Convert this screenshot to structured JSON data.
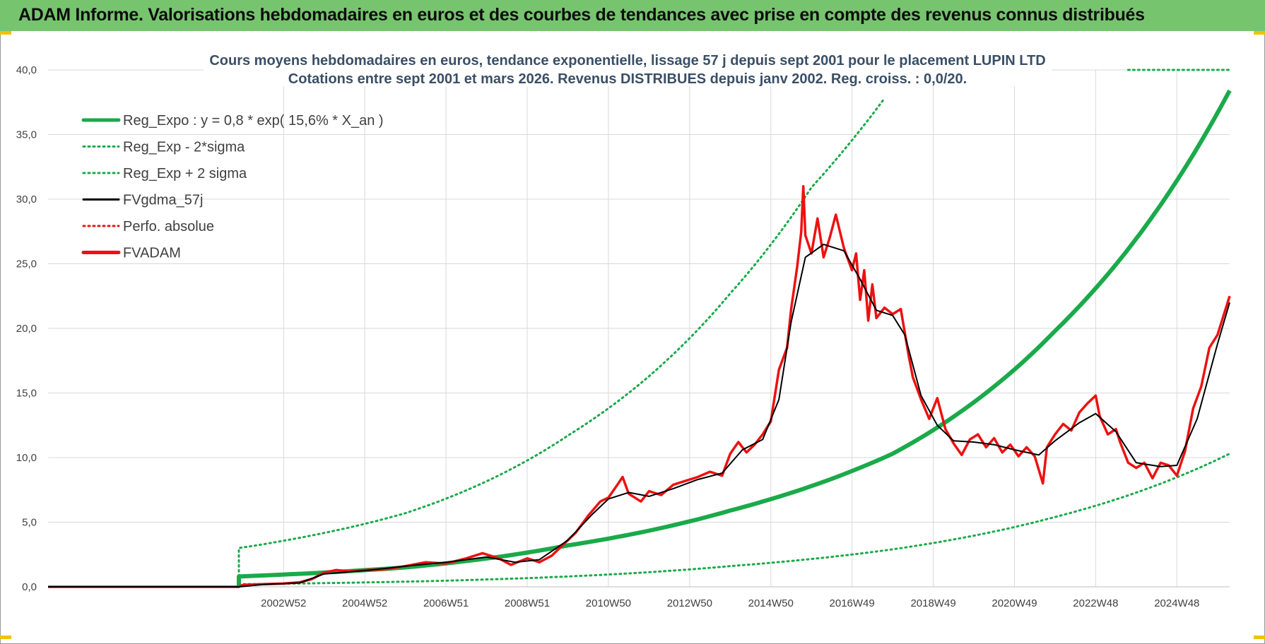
{
  "header": {
    "title": "ADAM Informe. Valorisations hebdomadaires en euros et des courbes de tendances avec prise en compte des revenus connus distribués"
  },
  "colors": {
    "banner": "#77c46f",
    "reg_expo": "#1aaa4a",
    "fv_line": "#000000",
    "fvadam": "#ee1111",
    "grid": "#d9d9d9",
    "corner_marks": "#f2c100"
  },
  "chart_data": {
    "type": "line",
    "title_line1": "Cours moyens hebdomadaires en euros, tendance exponentielle, lissage 57 j depuis sept 2001 pour le placement LUPIN LTD",
    "title_line2": "Cotations entre sept 2001 et mars 2026. Revenus DISTRIBUES depuis janv 2002. Reg. croiss. : 0,0/20.",
    "ylim": [
      0,
      40
    ],
    "y_ticks": [
      "0,0",
      "5,0",
      "10,0",
      "15,0",
      "20,0",
      "25,0",
      "30,0",
      "35,0",
      "40,0"
    ],
    "x_range_years": [
      1997.2,
      2026.3
    ],
    "x_tick_labels": [
      "2002W52",
      "2004W52",
      "2006W51",
      "2008W51",
      "2010W50",
      "2012W50",
      "2014W50",
      "2016W49",
      "2018W49",
      "2020W49",
      "2022W48",
      "2024W48"
    ],
    "x_tick_years": [
      2003.0,
      2005.0,
      2007.0,
      2009.0,
      2011.0,
      2013.0,
      2015.0,
      2017.0,
      2019.0,
      2021.0,
      2023.0,
      2025.0
    ],
    "grid": true,
    "legend_position": "top-left",
    "legend": [
      {
        "label": "Reg_Expo : y = 0,8 * exp( 15,6% *  X_an )",
        "style": "solid-thick",
        "color": "#1aaa4a"
      },
      {
        "label": "Reg_Exp - 2*sigma",
        "style": "dotted",
        "color": "#1aaa4a"
      },
      {
        "label": "Reg_Exp + 2 sigma",
        "style": "dotted",
        "color": "#1aaa4a"
      },
      {
        "label": "FVgdma_57j",
        "style": "solid",
        "color": "#000000"
      },
      {
        "label": "Perfo. absolue",
        "style": "dotted",
        "color": "#ee1111"
      },
      {
        "label": "FVADAM",
        "style": "solid-thick",
        "color": "#ee1111"
      }
    ],
    "regression": {
      "start_year": 2001.9,
      "end_year": 2026.3,
      "reg_expo": [
        [
          2001.9,
          0.8
        ],
        [
          2006.0,
          1.5
        ],
        [
          2010.0,
          3.2
        ],
        [
          2014.0,
          5.9
        ],
        [
          2018.0,
          10.3
        ],
        [
          2022.0,
          19.8
        ],
        [
          2026.3,
          38.4
        ]
      ],
      "lower_2sigma": [
        [
          2001.9,
          0.2
        ],
        [
          2006.0,
          0.4
        ],
        [
          2010.0,
          0.8
        ],
        [
          2014.0,
          1.6
        ],
        [
          2018.0,
          2.9
        ],
        [
          2022.0,
          5.4
        ],
        [
          2026.3,
          10.3
        ]
      ],
      "upper_2sigma": [
        [
          2001.9,
          3.0
        ],
        [
          2006.0,
          5.7
        ],
        [
          2010.0,
          11.7
        ],
        [
          2014.0,
          22.7
        ],
        [
          2016.0,
          30.9
        ],
        [
          2017.8,
          37.8
        ]
      ],
      "upper_cap": [
        [
          2023.8,
          40.0
        ],
        [
          2026.3,
          40.0
        ]
      ]
    },
    "series": [
      {
        "name": "FVADAM",
        "points": [
          [
            1997.2,
            0.0
          ],
          [
            2001.9,
            0.0
          ],
          [
            2002.0,
            0.15
          ],
          [
            2002.5,
            0.2
          ],
          [
            2003.0,
            0.25
          ],
          [
            2003.4,
            0.35
          ],
          [
            2003.7,
            0.6
          ],
          [
            2004.0,
            1.1
          ],
          [
            2004.3,
            1.3
          ],
          [
            2004.6,
            1.2
          ],
          [
            2005.0,
            1.3
          ],
          [
            2005.5,
            1.35
          ],
          [
            2006.0,
            1.6
          ],
          [
            2006.5,
            1.9
          ],
          [
            2007.0,
            1.8
          ],
          [
            2007.5,
            2.2
          ],
          [
            2007.9,
            2.6
          ],
          [
            2008.3,
            2.2
          ],
          [
            2008.6,
            1.7
          ],
          [
            2009.0,
            2.2
          ],
          [
            2009.3,
            1.9
          ],
          [
            2009.6,
            2.4
          ],
          [
            2009.9,
            3.3
          ],
          [
            2010.2,
            4.2
          ],
          [
            2010.5,
            5.5
          ],
          [
            2010.8,
            6.6
          ],
          [
            2011.0,
            6.9
          ],
          [
            2011.2,
            7.8
          ],
          [
            2011.35,
            8.5
          ],
          [
            2011.5,
            7.2
          ],
          [
            2011.8,
            6.6
          ],
          [
            2012.0,
            7.4
          ],
          [
            2012.3,
            7.1
          ],
          [
            2012.6,
            7.9
          ],
          [
            2012.9,
            8.2
          ],
          [
            2013.2,
            8.5
          ],
          [
            2013.5,
            8.9
          ],
          [
            2013.8,
            8.6
          ],
          [
            2014.0,
            10.3
          ],
          [
            2014.2,
            11.2
          ],
          [
            2014.4,
            10.4
          ],
          [
            2014.6,
            11.0
          ],
          [
            2014.8,
            11.8
          ],
          [
            2015.0,
            12.8
          ],
          [
            2015.2,
            16.8
          ],
          [
            2015.4,
            18.5
          ],
          [
            2015.5,
            21.5
          ],
          [
            2015.65,
            24.8
          ],
          [
            2015.75,
            27.5
          ],
          [
            2015.8,
            31.0
          ],
          [
            2015.85,
            27.2
          ],
          [
            2016.0,
            25.8
          ],
          [
            2016.15,
            28.5
          ],
          [
            2016.3,
            25.5
          ],
          [
            2016.45,
            27.0
          ],
          [
            2016.6,
            28.8
          ],
          [
            2016.8,
            26.2
          ],
          [
            2017.0,
            24.5
          ],
          [
            2017.1,
            25.8
          ],
          [
            2017.2,
            22.2
          ],
          [
            2017.3,
            24.5
          ],
          [
            2017.4,
            20.6
          ],
          [
            2017.5,
            23.4
          ],
          [
            2017.6,
            20.8
          ],
          [
            2017.8,
            21.6
          ],
          [
            2018.0,
            21.1
          ],
          [
            2018.2,
            21.5
          ],
          [
            2018.4,
            17.8
          ],
          [
            2018.5,
            16.2
          ],
          [
            2018.7,
            14.5
          ],
          [
            2018.9,
            13.0
          ],
          [
            2019.1,
            14.6
          ],
          [
            2019.3,
            12.2
          ],
          [
            2019.5,
            11.1
          ],
          [
            2019.7,
            10.2
          ],
          [
            2019.9,
            11.4
          ],
          [
            2020.1,
            11.8
          ],
          [
            2020.3,
            10.8
          ],
          [
            2020.5,
            11.5
          ],
          [
            2020.7,
            10.4
          ],
          [
            2020.9,
            11.0
          ],
          [
            2021.1,
            10.1
          ],
          [
            2021.3,
            10.8
          ],
          [
            2021.5,
            10.1
          ],
          [
            2021.7,
            8.0
          ],
          [
            2021.8,
            10.8
          ],
          [
            2022.0,
            11.8
          ],
          [
            2022.2,
            12.6
          ],
          [
            2022.4,
            12.1
          ],
          [
            2022.6,
            13.5
          ],
          [
            2022.8,
            14.2
          ],
          [
            2023.0,
            14.8
          ],
          [
            2023.1,
            13.2
          ],
          [
            2023.3,
            11.8
          ],
          [
            2023.5,
            12.2
          ],
          [
            2023.6,
            11.2
          ],
          [
            2023.8,
            9.6
          ],
          [
            2024.0,
            9.2
          ],
          [
            2024.2,
            9.6
          ],
          [
            2024.4,
            8.4
          ],
          [
            2024.6,
            9.6
          ],
          [
            2024.8,
            9.4
          ],
          [
            2025.0,
            8.6
          ],
          [
            2025.2,
            10.5
          ],
          [
            2025.4,
            13.8
          ],
          [
            2025.6,
            15.5
          ],
          [
            2025.8,
            18.5
          ],
          [
            2026.0,
            19.5
          ],
          [
            2026.3,
            22.5
          ]
        ]
      },
      {
        "name": "FVgdma_57j",
        "points": [
          [
            1997.2,
            0.0
          ],
          [
            2001.9,
            0.0
          ],
          [
            2002.5,
            0.18
          ],
          [
            2003.4,
            0.3
          ],
          [
            2004.0,
            1.0
          ],
          [
            2005.0,
            1.25
          ],
          [
            2006.0,
            1.6
          ],
          [
            2007.0,
            1.9
          ],
          [
            2008.0,
            2.3
          ],
          [
            2008.7,
            1.9
          ],
          [
            2009.3,
            2.1
          ],
          [
            2010.0,
            3.6
          ],
          [
            2010.6,
            5.6
          ],
          [
            2011.0,
            6.8
          ],
          [
            2011.5,
            7.3
          ],
          [
            2012.0,
            7.0
          ],
          [
            2012.6,
            7.6
          ],
          [
            2013.2,
            8.3
          ],
          [
            2013.8,
            8.8
          ],
          [
            2014.3,
            10.6
          ],
          [
            2014.8,
            11.4
          ],
          [
            2015.2,
            14.5
          ],
          [
            2015.5,
            20.5
          ],
          [
            2015.85,
            25.5
          ],
          [
            2016.3,
            26.5
          ],
          [
            2016.8,
            26.0
          ],
          [
            2017.2,
            23.8
          ],
          [
            2017.6,
            21.4
          ],
          [
            2018.0,
            21.0
          ],
          [
            2018.3,
            19.5
          ],
          [
            2018.7,
            14.8
          ],
          [
            2019.1,
            12.5
          ],
          [
            2019.5,
            11.3
          ],
          [
            2020.0,
            11.2
          ],
          [
            2020.5,
            11.0
          ],
          [
            2021.0,
            10.6
          ],
          [
            2021.6,
            10.2
          ],
          [
            2022.0,
            11.3
          ],
          [
            2022.6,
            12.7
          ],
          [
            2023.0,
            13.4
          ],
          [
            2023.5,
            12.0
          ],
          [
            2024.0,
            9.6
          ],
          [
            2024.6,
            9.3
          ],
          [
            2025.0,
            9.4
          ],
          [
            2025.5,
            13.0
          ],
          [
            2026.0,
            18.8
          ],
          [
            2026.3,
            22.0
          ]
        ]
      }
    ]
  }
}
